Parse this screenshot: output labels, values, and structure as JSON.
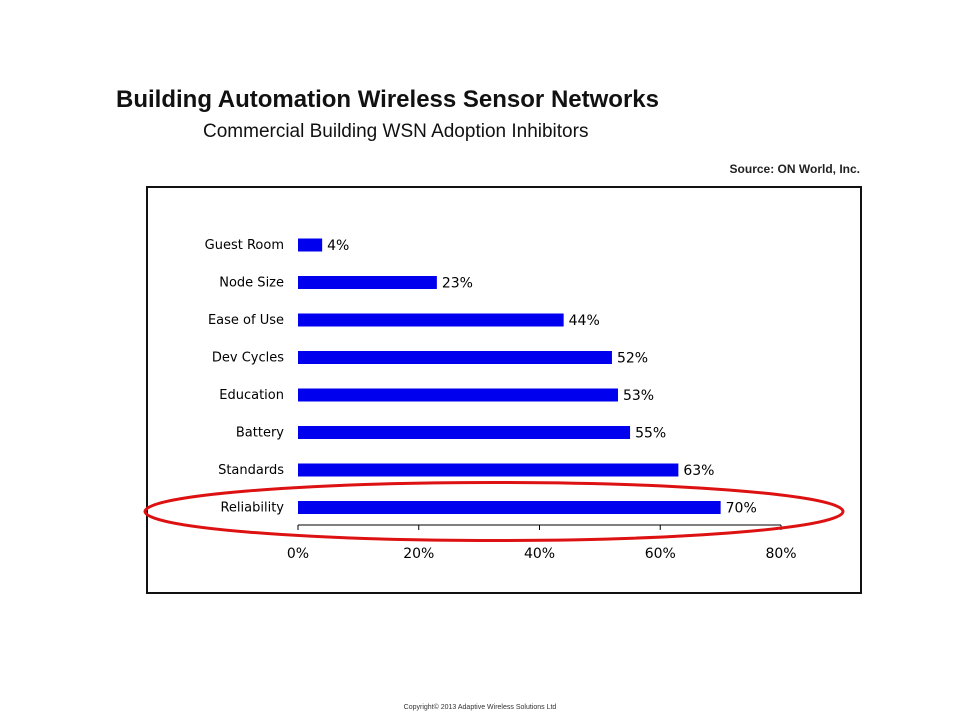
{
  "title": "Building Automation Wireless Sensor Networks",
  "subtitle": "Commercial Building WSN Adoption Inhibitors",
  "source": "Source: ON World, Inc.",
  "copyright": "Copyright© 2013 Adaptive Wireless Solutions Ltd",
  "colors": {
    "bar": "#0000ee",
    "highlight": "#dd1111",
    "frame": "#111111"
  },
  "chart_data": {
    "type": "bar",
    "orientation": "horizontal",
    "categories": [
      "Guest Room",
      "Node Size",
      "Ease of Use",
      "Dev Cycles",
      "Education",
      "Battery",
      "Standards",
      "Reliability"
    ],
    "values": [
      4,
      23,
      44,
      52,
      53,
      55,
      63,
      70
    ],
    "value_labels": [
      "4%",
      "23%",
      "44%",
      "52%",
      "53%",
      "55%",
      "63%",
      "70%"
    ],
    "xlim": [
      0,
      80
    ],
    "x_ticks": [
      "0%",
      "20%",
      "40%",
      "60%",
      "80%"
    ],
    "grid": false,
    "highlighted_category": "Reliability"
  }
}
